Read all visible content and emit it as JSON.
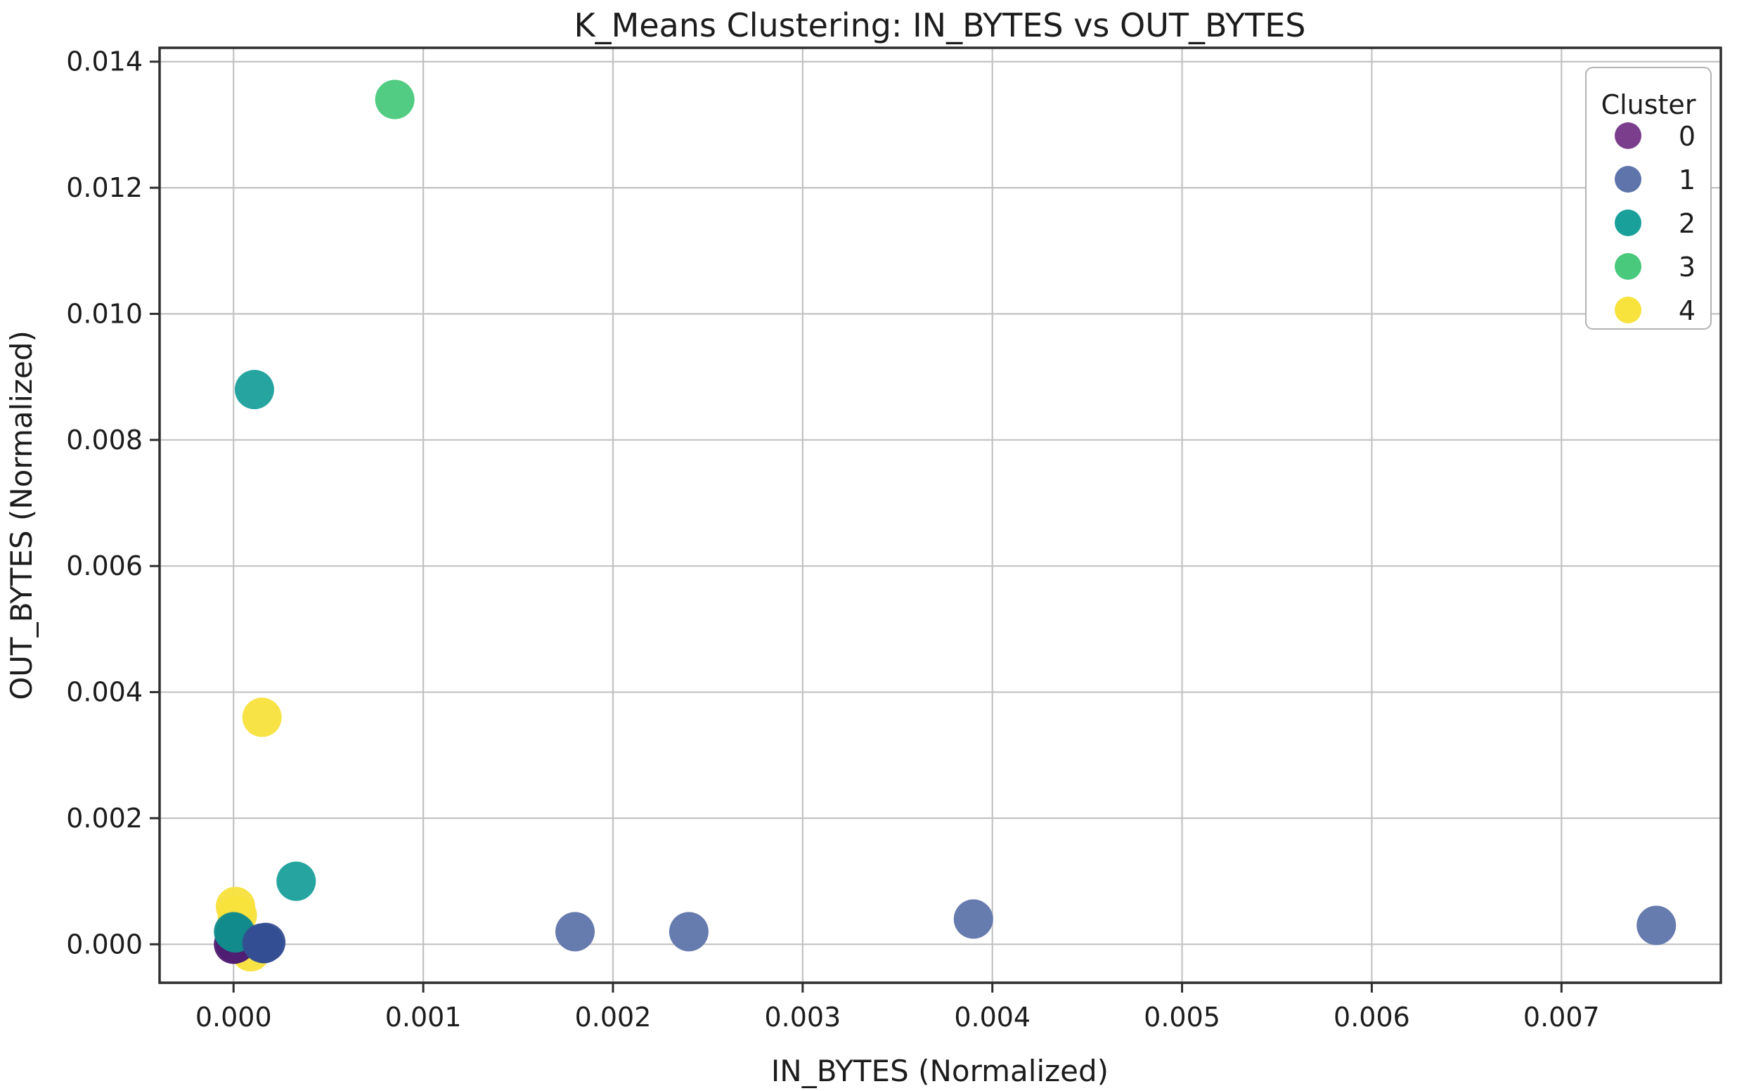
{
  "title": "K_Means Clustering: IN_BYTES vs OUT_BYTES",
  "chart_data": {
    "type": "scatter",
    "title": "K_Means Clustering: IN_BYTES vs OUT_BYTES",
    "xlabel": "IN_BYTES (Normalized)",
    "ylabel": "OUT_BYTES (Normalized)",
    "xlim": [
      -0.00039,
      0.00784
    ],
    "ylim": [
      -0.00061,
      0.01422
    ],
    "grid": true,
    "x_ticks": {
      "values": [
        0.0,
        0.001,
        0.002,
        0.003,
        0.004,
        0.005,
        0.006,
        0.007
      ],
      "labels": [
        "0.000",
        "0.001",
        "0.002",
        "0.003",
        "0.004",
        "0.005",
        "0.006",
        "0.007"
      ]
    },
    "y_ticks": {
      "values": [
        0.0,
        0.002,
        0.004,
        0.006,
        0.008,
        0.01,
        0.012,
        0.014
      ],
      "labels": [
        "0.000",
        "0.002",
        "0.004",
        "0.006",
        "0.008",
        "0.010",
        "0.012",
        "0.014"
      ]
    },
    "legend": {
      "title": "Cluster",
      "position": "upper right",
      "entries": [
        {
          "label": "0",
          "color": "#7b3e8d"
        },
        {
          "label": "1",
          "color": "#5e74aa"
        },
        {
          "label": "2",
          "color": "#1aa09b"
        },
        {
          "label": "3",
          "color": "#48c97b"
        },
        {
          "label": "4",
          "color": "#f8e23c"
        }
      ]
    },
    "clusters": [
      {
        "label": "0",
        "color": "#7b3e8d",
        "dark": "#4f1c72"
      },
      {
        "label": "1",
        "color": "#5e74aa",
        "dark": "#344e92"
      },
      {
        "label": "2",
        "color": "#1aa09b",
        "dark": "#128b8c"
      },
      {
        "label": "3",
        "color": "#48c97b",
        "dark": "#48c97b"
      },
      {
        "label": "4",
        "color": "#f8e23c",
        "dark": "#f8e23c"
      }
    ],
    "points": [
      [
        1e-05,
        0.0006,
        4
      ],
      [
        2e-05,
        0.00046,
        4
      ],
      [
        9e-05,
        -0.00012,
        4
      ],
      [
        0.0,
        0.0,
        0,
        "d"
      ],
      [
        1e-05,
        1e-05,
        0,
        "d"
      ],
      [
        0.0,
        0.0002,
        2,
        "d"
      ],
      [
        1e-05,
        0.00018,
        2,
        "d"
      ],
      [
        0.00015,
        2e-05,
        1,
        "d"
      ],
      [
        0.00017,
        3e-05,
        1,
        "d"
      ],
      [
        0.00016,
        1e-05,
        1,
        "d"
      ],
      [
        0.0018,
        0.0002,
        1
      ],
      [
        0.0024,
        0.0002,
        1
      ],
      [
        0.0039,
        0.0004,
        1
      ],
      [
        0.0075,
        0.0003,
        1
      ],
      [
        0.00011,
        0.0088,
        2
      ],
      [
        0.00033,
        0.001,
        2
      ],
      [
        0.00015,
        0.0036,
        4
      ],
      [
        0.00085,
        0.0134,
        3
      ]
    ],
    "marker_radius_px": 28
  },
  "colors": {
    "background": "#ffffff",
    "grid": "#c2c2c2",
    "spine": "#2e2e2e",
    "text": "#1c1c1c",
    "legend_border": "#b3b3b3"
  }
}
